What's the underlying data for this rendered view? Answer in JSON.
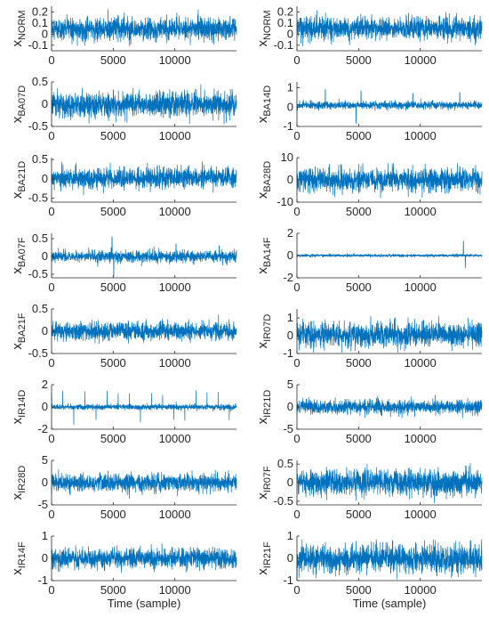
{
  "chart_data": [
    {
      "type": "line",
      "ylabel": {
        "main": "x",
        "sub": "NORM"
      },
      "ylim": [
        -0.15,
        0.25
      ],
      "yticks": [
        {
          "v": -0.1,
          "label": "-0.1"
        },
        {
          "v": 0,
          "label": "0"
        },
        {
          "v": 0.1,
          "label": "0.1"
        },
        {
          "v": 0.2,
          "label": "0.2"
        }
      ],
      "xlim": [
        0,
        15000
      ],
      "xticks": [
        {
          "v": 0,
          "label": "0"
        },
        {
          "v": 5000,
          "label": "5000"
        },
        {
          "v": 10000,
          "label": "10000"
        }
      ],
      "xlabel": "",
      "signal": {
        "base": 0.05,
        "noise": 0.05,
        "max": 0.23,
        "min": -0.13,
        "seed": 1
      }
    },
    {
      "type": "line",
      "ylabel": {
        "main": "x",
        "sub": "NORM"
      },
      "ylim": [
        -0.15,
        0.25
      ],
      "yticks": [
        {
          "v": -0.1,
          "label": "-0.1"
        },
        {
          "v": 0,
          "label": "0"
        },
        {
          "v": 0.1,
          "label": "0.1"
        },
        {
          "v": 0.2,
          "label": "0.2"
        }
      ],
      "xlim": [
        0,
        15000
      ],
      "xticks": [
        {
          "v": 0,
          "label": "0"
        },
        {
          "v": 5000,
          "label": "5000"
        },
        {
          "v": 10000,
          "label": "10000"
        }
      ],
      "xlabel": "",
      "signal": {
        "base": 0.05,
        "noise": 0.05,
        "max": 0.23,
        "min": -0.13,
        "seed": 2
      }
    },
    {
      "type": "line",
      "ylabel": {
        "main": "x",
        "sub": "BA07D"
      },
      "ylim": [
        -0.5,
        0.5
      ],
      "yticks": [
        {
          "v": -0.5,
          "label": "-0.5"
        },
        {
          "v": 0,
          "label": "0"
        },
        {
          "v": 0.5,
          "label": "0.5"
        }
      ],
      "xlim": [
        0,
        15000
      ],
      "xticks": [
        {
          "v": 0,
          "label": "0"
        },
        {
          "v": 5000,
          "label": "5000"
        },
        {
          "v": 10000,
          "label": "10000"
        }
      ],
      "xlabel": "",
      "signal": {
        "base": 0,
        "noise": 0.14,
        "max": 0.45,
        "min": -0.45,
        "seed": 3
      }
    },
    {
      "type": "line",
      "ylabel": {
        "main": "x",
        "sub": "BA14D"
      },
      "ylim": [
        -1,
        1.3
      ],
      "yticks": [
        {
          "v": -1,
          "label": "-1"
        },
        {
          "v": 0,
          "label": "0"
        },
        {
          "v": 1,
          "label": "1"
        }
      ],
      "xlim": [
        0,
        15000
      ],
      "xticks": [
        {
          "v": 0,
          "label": "0"
        },
        {
          "v": 5000,
          "label": "5000"
        },
        {
          "v": 10000,
          "label": "10000"
        }
      ],
      "xlabel": "",
      "signal": {
        "base": 0.1,
        "noise": 0.1,
        "max": 1.1,
        "min": -0.85,
        "seed": 4,
        "spikes": [
          {
            "x": 2300,
            "amp": 0.9
          },
          {
            "x": 4800,
            "amp": -0.9
          },
          {
            "x": 5200,
            "amp": 0.85
          },
          {
            "x": 9400,
            "amp": 0.7
          },
          {
            "x": 13200,
            "amp": 0.75
          }
        ]
      }
    },
    {
      "type": "line",
      "ylabel": {
        "main": "x",
        "sub": "BA21D"
      },
      "ylim": [
        -0.6,
        0.55
      ],
      "yticks": [
        {
          "v": -0.5,
          "label": "-0.5"
        },
        {
          "v": 0,
          "label": "0"
        },
        {
          "v": 0.5,
          "label": "0.5"
        }
      ],
      "xlim": [
        0,
        15000
      ],
      "xticks": [
        {
          "v": 0,
          "label": "0"
        },
        {
          "v": 5000,
          "label": "5000"
        },
        {
          "v": 10000,
          "label": "10000"
        }
      ],
      "xlabel": "",
      "signal": {
        "base": 0.02,
        "noise": 0.13,
        "max": 0.45,
        "min": -0.55,
        "seed": 5
      }
    },
    {
      "type": "line",
      "ylabel": {
        "main": "x",
        "sub": "BA28D"
      },
      "ylim": [
        -10,
        10
      ],
      "yticks": [
        {
          "v": -10,
          "label": "-10"
        },
        {
          "v": 0,
          "label": "0"
        },
        {
          "v": 10,
          "label": "10"
        }
      ],
      "xlim": [
        0,
        15000
      ],
      "xticks": [
        {
          "v": 0,
          "label": "0"
        },
        {
          "v": 5000,
          "label": "5000"
        },
        {
          "v": 10000,
          "label": "10000"
        }
      ],
      "xlabel": "",
      "signal": {
        "base": 0,
        "noise": 2.6,
        "max": 7.5,
        "min": -9,
        "seed": 6
      }
    },
    {
      "type": "line",
      "ylabel": {
        "main": "x",
        "sub": "BA07F"
      },
      "ylim": [
        -0.6,
        0.65
      ],
      "yticks": [
        {
          "v": -0.5,
          "label": "-0.5"
        },
        {
          "v": 0,
          "label": "0"
        },
        {
          "v": 0.5,
          "label": "0.5"
        }
      ],
      "xlim": [
        0,
        15000
      ],
      "xticks": [
        {
          "v": 0,
          "label": "0"
        },
        {
          "v": 5000,
          "label": "5000"
        },
        {
          "v": 10000,
          "label": "10000"
        }
      ],
      "xlabel": "",
      "signal": {
        "base": 0,
        "noise": 0.08,
        "max": 0.55,
        "min": -0.55,
        "seed": 7,
        "spikes": [
          {
            "x": 4900,
            "amp": 0.55
          },
          {
            "x": 5050,
            "amp": -0.55
          },
          {
            "x": 10100,
            "amp": 0.35
          },
          {
            "x": 13600,
            "amp": 0.3
          }
        ]
      }
    },
    {
      "type": "line",
      "ylabel": {
        "main": "x",
        "sub": "BA14F"
      },
      "ylim": [
        -2,
        2
      ],
      "yticks": [
        {
          "v": -2,
          "label": "-2"
        },
        {
          "v": 0,
          "label": "0"
        },
        {
          "v": 2,
          "label": "2"
        }
      ],
      "xlim": [
        0,
        15000
      ],
      "xticks": [
        {
          "v": 0,
          "label": "0"
        },
        {
          "v": 5000,
          "label": "5000"
        },
        {
          "v": 10000,
          "label": "10000"
        }
      ],
      "xlabel": "",
      "signal": {
        "base": 0,
        "noise": 0.06,
        "max": 1.3,
        "min": -1.2,
        "seed": 8,
        "spikes": [
          {
            "x": 13500,
            "amp": 1.3
          },
          {
            "x": 13650,
            "amp": -1.1
          }
        ]
      }
    },
    {
      "type": "line",
      "ylabel": {
        "main": "x",
        "sub": "BA21F"
      },
      "ylim": [
        -0.5,
        0.5
      ],
      "yticks": [
        {
          "v": -0.5,
          "label": "-0.5"
        },
        {
          "v": 0,
          "label": "0"
        },
        {
          "v": 0.5,
          "label": "0.5"
        }
      ],
      "xlim": [
        0,
        15000
      ],
      "xticks": [
        {
          "v": 0,
          "label": "0"
        },
        {
          "v": 5000,
          "label": "5000"
        },
        {
          "v": 10000,
          "label": "10000"
        }
      ],
      "xlabel": "",
      "signal": {
        "base": 0,
        "noise": 0.1,
        "max": 0.4,
        "min": -0.4,
        "seed": 9
      }
    },
    {
      "type": "line",
      "ylabel": {
        "main": "x",
        "sub": "IR07D"
      },
      "ylim": [
        -1,
        1.5
      ],
      "yticks": [
        {
          "v": -1,
          "label": "-1"
        },
        {
          "v": 0,
          "label": "0"
        },
        {
          "v": 1,
          "label": "1"
        }
      ],
      "xlim": [
        0,
        15000
      ],
      "xticks": [
        {
          "v": 0,
          "label": "0"
        },
        {
          "v": 5000,
          "label": "5000"
        },
        {
          "v": 10000,
          "label": "10000"
        }
      ],
      "xlabel": "",
      "signal": {
        "base": 0.05,
        "noise": 0.35,
        "max": 1.35,
        "min": -0.95,
        "seed": 10
      }
    },
    {
      "type": "line",
      "ylabel": {
        "main": "x",
        "sub": "IR14D"
      },
      "ylim": [
        -2,
        2
      ],
      "yticks": [
        {
          "v": -2,
          "label": "-2"
        },
        {
          "v": 0,
          "label": "0"
        },
        {
          "v": 2,
          "label": "2"
        }
      ],
      "xlim": [
        0,
        15000
      ],
      "xticks": [
        {
          "v": 0,
          "label": "0"
        },
        {
          "v": 5000,
          "label": "5000"
        },
        {
          "v": 10000,
          "label": "10000"
        }
      ],
      "xlabel": "",
      "signal": {
        "base": 0,
        "noise": 0.12,
        "max": 1.7,
        "min": -1.6,
        "seed": 11,
        "period": 900,
        "periodAmp": 1.3
      }
    },
    {
      "type": "line",
      "ylabel": {
        "main": "x",
        "sub": "IR21D"
      },
      "ylim": [
        -5,
        5
      ],
      "yticks": [
        {
          "v": -5,
          "label": "-5"
        },
        {
          "v": 0,
          "label": "0"
        },
        {
          "v": 5,
          "label": "5"
        }
      ],
      "xlim": [
        0,
        15000
      ],
      "xticks": [
        {
          "v": 0,
          "label": "0"
        },
        {
          "v": 5000,
          "label": "5000"
        },
        {
          "v": 10000,
          "label": "10000"
        }
      ],
      "xlabel": "",
      "signal": {
        "base": 0,
        "noise": 0.8,
        "max": 4.2,
        "min": -3.5,
        "seed": 12
      }
    },
    {
      "type": "line",
      "ylabel": {
        "main": "x",
        "sub": "IR28D"
      },
      "ylim": [
        -5,
        5
      ],
      "yticks": [
        {
          "v": -5,
          "label": "-5"
        },
        {
          "v": 0,
          "label": "0"
        },
        {
          "v": 5,
          "label": "5"
        }
      ],
      "xlim": [
        0,
        15000
      ],
      "xticks": [
        {
          "v": 0,
          "label": "0"
        },
        {
          "v": 5000,
          "label": "5000"
        },
        {
          "v": 10000,
          "label": "10000"
        }
      ],
      "xlabel": "",
      "signal": {
        "base": 0,
        "noise": 1.0,
        "max": 3.8,
        "min": -3.8,
        "seed": 13
      }
    },
    {
      "type": "line",
      "ylabel": {
        "main": "x",
        "sub": "IR07F"
      },
      "ylim": [
        -0.6,
        0.6
      ],
      "yticks": [
        {
          "v": -0.5,
          "label": "-0.5"
        },
        {
          "v": 0,
          "label": "0"
        },
        {
          "v": 0.5,
          "label": "0.5"
        }
      ],
      "xlim": [
        0,
        15000
      ],
      "xticks": [
        {
          "v": 0,
          "label": "0"
        },
        {
          "v": 5000,
          "label": "5000"
        },
        {
          "v": 10000,
          "label": "10000"
        }
      ],
      "xlabel": "",
      "signal": {
        "base": 0,
        "noise": 0.17,
        "max": 0.55,
        "min": -0.58,
        "seed": 14
      }
    },
    {
      "type": "line",
      "ylabel": {
        "main": "x",
        "sub": "IR14F"
      },
      "ylim": [
        -1,
        1
      ],
      "yticks": [
        {
          "v": -1,
          "label": "-1"
        },
        {
          "v": 0,
          "label": "0"
        },
        {
          "v": 1,
          "label": "1"
        }
      ],
      "xlim": [
        0,
        15000
      ],
      "xticks": [
        {
          "v": 0,
          "label": "0"
        },
        {
          "v": 5000,
          "label": "5000"
        },
        {
          "v": 10000,
          "label": "10000"
        }
      ],
      "xlabel": "Time (sample)",
      "signal": {
        "base": 0,
        "noise": 0.22,
        "max": 0.8,
        "min": -0.9,
        "seed": 15
      }
    },
    {
      "type": "line",
      "ylabel": {
        "main": "x",
        "sub": "IR21F"
      },
      "ylim": [
        -1,
        1
      ],
      "yticks": [
        {
          "v": -1,
          "label": "-1"
        },
        {
          "v": 0,
          "label": "0"
        },
        {
          "v": 1,
          "label": "1"
        }
      ],
      "xlim": [
        0,
        15000
      ],
      "xticks": [
        {
          "v": 0,
          "label": "0"
        },
        {
          "v": 5000,
          "label": "5000"
        },
        {
          "v": 10000,
          "label": "10000"
        }
      ],
      "xlabel": "Time (sample)",
      "signal": {
        "base": 0,
        "noise": 0.32,
        "max": 0.85,
        "min": -0.95,
        "seed": 16
      }
    }
  ],
  "colors": {
    "line": "#0072BD",
    "axis": "#262626"
  }
}
